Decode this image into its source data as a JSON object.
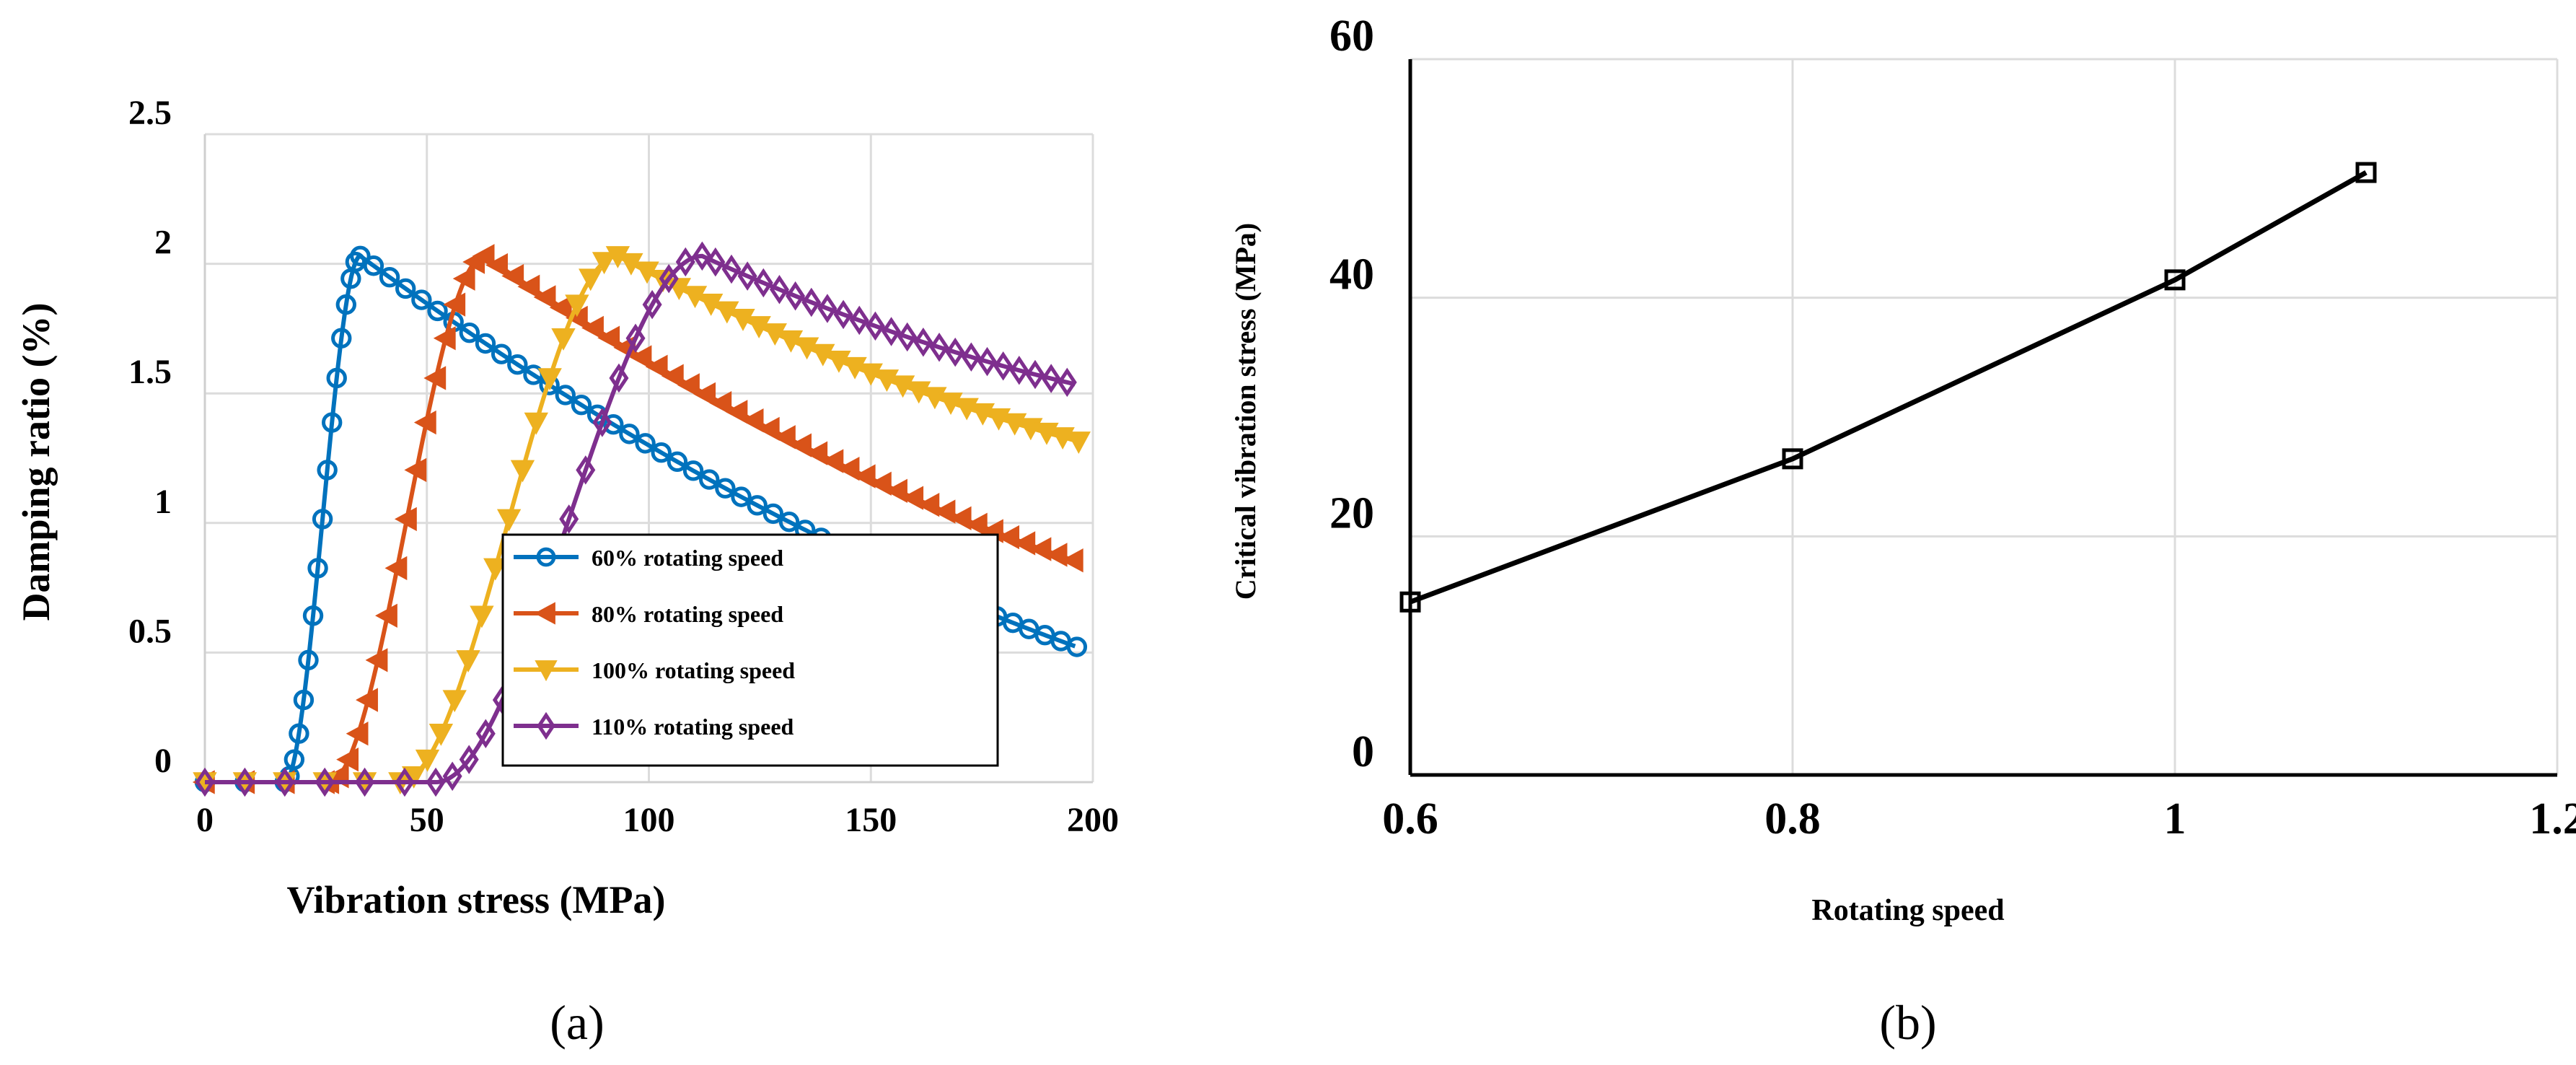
{
  "chart_data": [
    {
      "type": "line",
      "panel": "(a)",
      "xlabel": "Vibration stress (MPa)",
      "ylabel": "Damping ratio (%)",
      "xlim": [
        0,
        200
      ],
      "ylim": [
        0,
        2.5
      ],
      "xticks": [
        "0",
        "50",
        "100",
        "150",
        "200"
      ],
      "yticks": [
        "0",
        "0.5",
        "1",
        "1.5",
        "2",
        "2.5"
      ],
      "grid": true,
      "legend_position": "center-right",
      "series": [
        {
          "name": "60% rotating speed",
          "color": "#0072BD",
          "marker": "circle",
          "onset": 18,
          "peak_x": 35,
          "peak_y": 2.03,
          "end_y": 0.5
        },
        {
          "name": "80% rotating speed",
          "color": "#D95319",
          "marker": "triangle-left",
          "onset": 28,
          "peak_x": 63,
          "peak_y": 2.03,
          "end_y": 0.83
        },
        {
          "name": "100% rotating speed",
          "color": "#EDB120",
          "marker": "triangle-down",
          "onset": 44,
          "peak_x": 93,
          "peak_y": 2.03,
          "end_y": 1.3
        },
        {
          "name": "110% rotating speed",
          "color": "#7E2F8E",
          "marker": "diamond",
          "onset": 52,
          "peak_x": 112,
          "peak_y": 2.03,
          "end_y": 1.52
        }
      ]
    },
    {
      "type": "line",
      "panel": "(b)",
      "xlabel": "Rotating speed",
      "ylabel": "Critical vibration stress (MPa)",
      "xlim": [
        0.6,
        1.2
      ],
      "ylim": [
        0,
        60
      ],
      "xticks": [
        "0.6",
        "0.8",
        "1",
        "1.2"
      ],
      "yticks": [
        "0",
        "20",
        "40",
        "60"
      ],
      "grid": true,
      "color": "#000000",
      "marker": "square",
      "x": [
        0.6,
        0.8,
        1.0,
        1.1
      ],
      "y": [
        14.5,
        26.5,
        41.5,
        50.5
      ]
    }
  ],
  "captions": {
    "a": "(a)",
    "b": "(b)"
  }
}
